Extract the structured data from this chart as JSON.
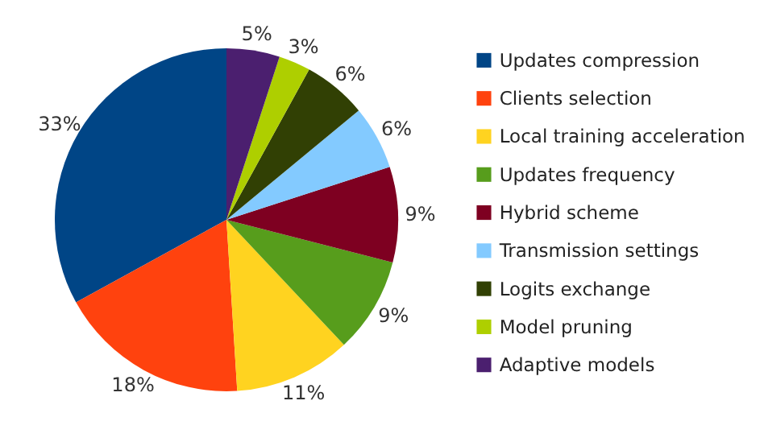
{
  "chart_data": {
    "type": "pie",
    "categories": [
      "Updates compression",
      "Clients selection",
      "Local training acceleration",
      "Updates frequency",
      "Hybrid scheme",
      "Transmission settings",
      "Logits exchange",
      "Model pruning",
      "Adaptive models"
    ],
    "values": [
      33,
      18,
      11,
      9,
      9,
      6,
      6,
      3,
      5
    ],
    "colors": [
      "#004586",
      "#ff420e",
      "#ffd320",
      "#579d1c",
      "#7e0021",
      "#83caff",
      "#314004",
      "#aecf00",
      "#4b1f6f"
    ],
    "value_labels": [
      "33%",
      "18%",
      "11%",
      "9%",
      "9%",
      "6%",
      "6%",
      "3%",
      "5%"
    ],
    "legend": "right"
  }
}
